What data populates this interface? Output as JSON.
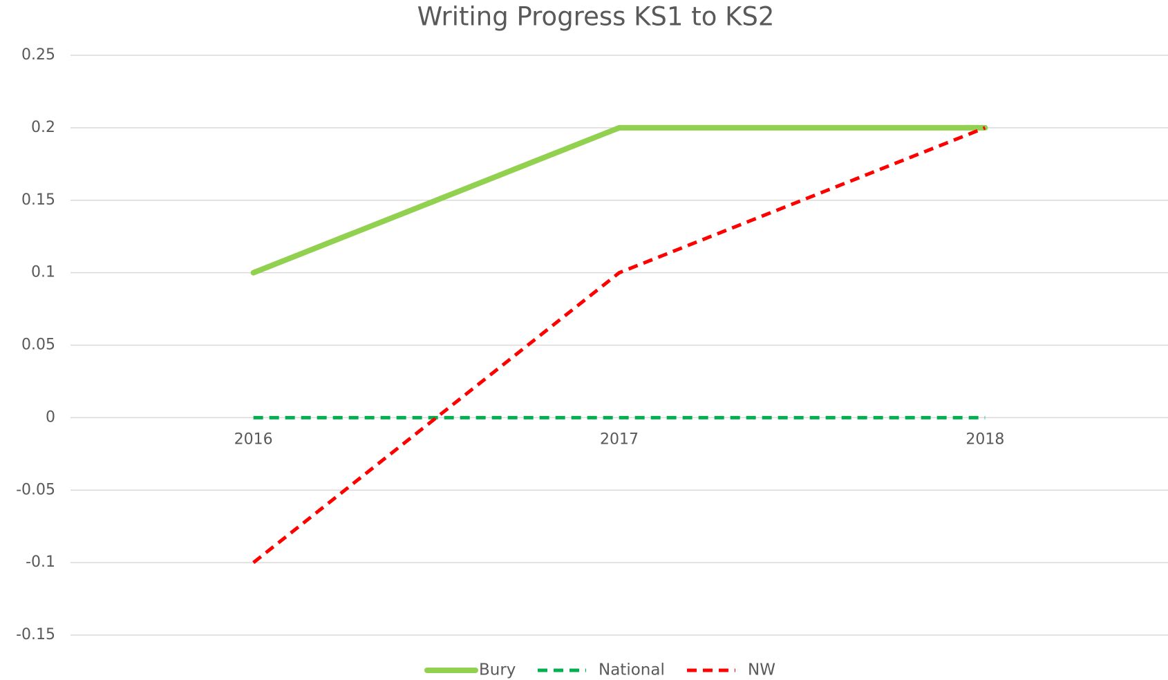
{
  "chart_data": {
    "type": "line",
    "title": "Writing Progress KS1 to KS2",
    "categories": [
      "2016",
      "2017",
      "2018"
    ],
    "series": [
      {
        "name": "Bury",
        "color": "#92d050",
        "dash": "solid",
        "values": [
          0.1,
          0.2,
          0.2
        ]
      },
      {
        "name": "National",
        "color": "#00b050",
        "dash": "dash",
        "values": [
          0,
          0,
          0
        ]
      },
      {
        "name": "NW",
        "color": "#ff0000",
        "dash": "dash",
        "values": [
          -0.1,
          0.1,
          0.2
        ]
      }
    ],
    "ylim": [
      -0.15,
      0.25
    ],
    "yticks": [
      0.25,
      0.2,
      0.15,
      0.1,
      0.05,
      0,
      -0.05,
      -0.1,
      -0.15
    ],
    "grid": true,
    "legend": "bottom"
  }
}
